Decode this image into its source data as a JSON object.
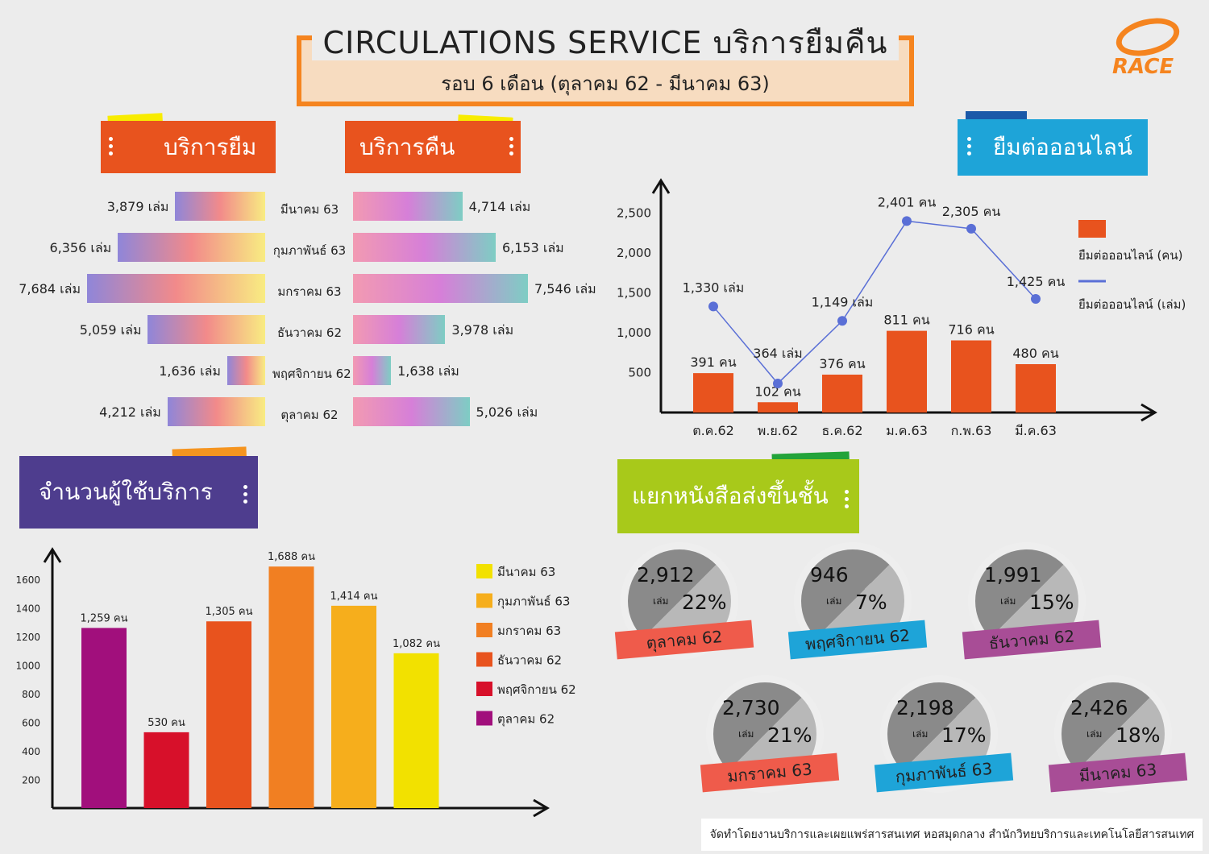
{
  "header": {
    "title": "CIRCULATIONS SERVICE บริการยืมคืน",
    "subtitle": "รอบ 6 เดือน (ตุลาคม 62 - มีนาคม 63)",
    "logo": "RACE"
  },
  "colors": {
    "orange": "#f5841f",
    "banner_orange": "#e8531e",
    "purple": "#4e3d8e",
    "blue": "#1ea4d8",
    "green": "#a8c91a"
  },
  "sections": {
    "borrow": "บริการยืม",
    "return": "บริการคืน",
    "online": "ยืมต่อออนไลน์",
    "users": "จำนวนผู้ใช้บริการ",
    "shelving": "แยกหนังสือส่งขึ้นชั้น"
  },
  "footer": "จัดทำโดยงานบริการและเผยแพร่สารสนเทศ หอสมุดกลาง สำนักวิทยบริการและเทคโนโลยีสารสนเทศ",
  "chart_data": [
    {
      "type": "bar",
      "orientation": "horizontal",
      "categories": [
        "มีนาคม 63",
        "กุมภาพันธ์ 63",
        "มกราคม 63",
        "ธันวาคม 62",
        "พฤศจิกายน 62",
        "ตุลาคม 62"
      ],
      "series": [
        {
          "name": "บริการยืม",
          "values": [
            3879,
            6356,
            7684,
            5059,
            1636,
            4212
          ],
          "labels": [
            "3,879 เล่ม",
            "6,356 เล่ม",
            "7,684 เล่ม",
            "5,059 เล่ม",
            "1,636 เล่ม",
            "4,212 เล่ม"
          ]
        },
        {
          "name": "บริการคืน",
          "values": [
            4714,
            6153,
            7546,
            3978,
            1638,
            5026
          ],
          "labels": [
            "4,714 เล่ม",
            "6,153 เล่ม",
            "7,546 เล่ม",
            "3,978 เล่ม",
            "1,638 เล่ม",
            "5,026 เล่ม"
          ]
        }
      ]
    },
    {
      "type": "bar",
      "categories": [
        "ต.ค.62",
        "พ.ย.62",
        "ธ.ค.62",
        "ม.ค.63",
        "ก.พ.63",
        "มี.ค.63"
      ],
      "yticks": [
        "500",
        "1,000",
        "1,500",
        "2,000",
        "2,500"
      ],
      "ylim": [
        0,
        2950
      ],
      "legend": "right",
      "series": [
        {
          "name": "ยืมต่อออนไลน์ (คน)",
          "type": "bar",
          "values": [
            391,
            102,
            376,
            811,
            716,
            480
          ],
          "labels": [
            "391 คน",
            "102 คน",
            "376 คน",
            "811 คน",
            "716 คน",
            "480 คน"
          ],
          "color": "#e8531e"
        },
        {
          "name": "ยืมต่อออนไลน์ (เล่ม)",
          "type": "line",
          "values": [
            1330,
            364,
            1149,
            2401,
            2305,
            1425
          ],
          "labels": [
            "1,330 เล่ม",
            "364 เล่ม",
            "1,149 เล่ม",
            "2,401 คน",
            "2,305 คน",
            "1,425 คน"
          ],
          "color": "#5a6fd6"
        }
      ]
    },
    {
      "type": "bar",
      "categories": [
        "ตุลาคม 62",
        "พฤศจิกายน 62",
        "ธันวาคม 62",
        "มกราคม 63",
        "กุมภาพันธ์ 63",
        "มีนาคม 63"
      ],
      "values": [
        1259,
        530,
        1305,
        1688,
        1414,
        1082
      ],
      "labels": [
        "1,259 คน",
        "530 คน",
        "1,305 คน",
        "1,688 คน",
        "1,414 คน",
        "1,082 คน"
      ],
      "colors": [
        "#a10f7c",
        "#d7102a",
        "#e8531e",
        "#f17f22",
        "#f6ae1c",
        "#f2e100"
      ],
      "yticks": [
        "200",
        "400",
        "600",
        "800",
        "1000",
        "1200",
        "1400",
        "1600"
      ],
      "ylim": [
        0,
        1830
      ],
      "legend": "right",
      "legend_items": [
        {
          "label": "มีนาคม 63",
          "color": "#f2e100"
        },
        {
          "label": "กุมภาพันธ์ 63",
          "color": "#f6ae1c"
        },
        {
          "label": "มกราคม 63",
          "color": "#f17f22"
        },
        {
          "label": "ธันวาคม 62",
          "color": "#e8531e"
        },
        {
          "label": "พฤศจิกายน 62",
          "color": "#d7102a"
        },
        {
          "label": "ตุลาคม 62",
          "color": "#a10f7c"
        }
      ]
    },
    {
      "type": "pie",
      "items": [
        {
          "month": "ตุลาคม 62",
          "count": "2,912",
          "unit": "เล่ม",
          "percent": "22%",
          "color": "#ef5b4b"
        },
        {
          "month": "พฤศจิกายน 62",
          "count": "946",
          "unit": "เล่ม",
          "percent": "7%",
          "color": "#1ea4d8"
        },
        {
          "month": "ธันวาคม 62",
          "count": "1,991",
          "unit": "เล่ม",
          "percent": "15%",
          "color": "#a84d96"
        },
        {
          "month": "มกราคม 63",
          "count": "2,730",
          "unit": "เล่ม",
          "percent": "21%",
          "color": "#ef5b4b"
        },
        {
          "month": "กุมภาพันธ์ 63",
          "count": "2,198",
          "unit": "เล่ม",
          "percent": "17%",
          "color": "#1ea4d8"
        },
        {
          "month": "มีนาคม 63",
          "count": "2,426",
          "unit": "เล่ม",
          "percent": "18%",
          "color": "#a84d96"
        }
      ]
    }
  ]
}
